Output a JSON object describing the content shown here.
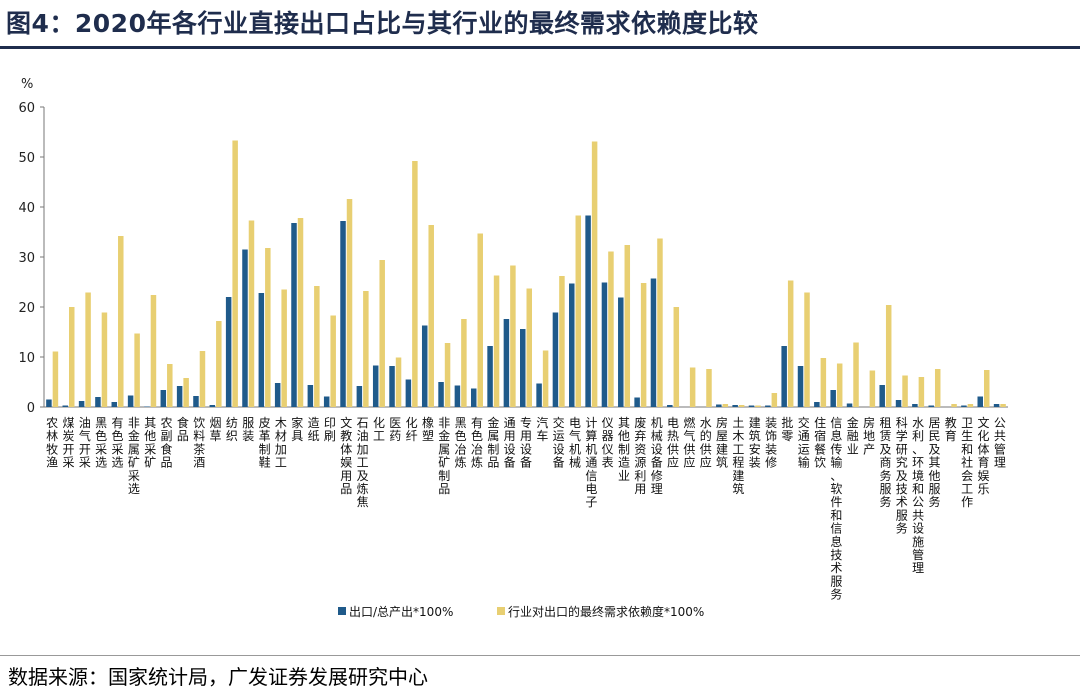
{
  "title": "图4：2020年各行业直接出口占比与其行业的最终需求依赖度比较",
  "source": "数据来源：国家统计局，广发证券发展研究中心",
  "chart_data": {
    "type": "bar",
    "ylabel": "%",
    "ylim": [
      0,
      60
    ],
    "yticks": [
      0,
      10,
      20,
      30,
      40,
      50,
      60
    ],
    "legend_position": "bottom",
    "grid": false,
    "colors": {
      "series1": "#1f5a8a",
      "series2": "#e8cf72"
    },
    "categories": [
      "农林牧渔",
      "煤炭开采",
      "油气开采",
      "黑色采选",
      "有色采选",
      "非金属矿采选",
      "其他采矿",
      "农副食品",
      "食品",
      "饮料茶酒",
      "烟草",
      "纺织",
      "服装",
      "皮革制鞋",
      "木材加工",
      "家具",
      "造纸",
      "印刷",
      "文教体娱用品",
      "石油加工及炼焦",
      "化工",
      "医药",
      "化纤",
      "橡塑",
      "非金属矿制品",
      "黑色冶炼",
      "有色冶炼",
      "金属制品",
      "通用设备",
      "专用设备",
      "汽车",
      "交运设备",
      "电气机械",
      "计算机通信电子",
      "仪器仪表",
      "其他制造业",
      "废弃资源利用",
      "机械设备修理",
      "电热供应",
      "燃气供应",
      "水的供应",
      "房屋建筑",
      "土木工程建筑",
      "建筑安装",
      "装饰装修",
      "批零",
      "交通运输",
      "住宿餐饮",
      "信息传输、软件和信息技术服务",
      "金融业",
      "房地产",
      "租赁及商务服务",
      "科学研究及技术服务",
      "水利、环境和公共设施管理",
      "居民及其他服务",
      "教育",
      "卫生和社会工作",
      "文化体育娱乐",
      "公共管理"
    ],
    "series": [
      {
        "name": "出口/总产出*100%",
        "values": [
          1.5,
          0.3,
          1.2,
          2.0,
          1.0,
          2.3,
          0.1,
          3.4,
          4.2,
          2.2,
          0.4,
          22.0,
          31.5,
          22.8,
          4.8,
          36.8,
          4.4,
          2.1,
          37.2,
          4.2,
          8.3,
          8.2,
          5.5,
          16.3,
          5.0,
          4.3,
          3.7,
          12.2,
          17.6,
          15.6,
          4.7,
          18.9,
          24.7,
          38.3,
          24.9,
          21.9,
          1.9,
          25.7,
          0.4,
          0.0,
          0.0,
          0.5,
          0.4,
          0.3,
          0.3,
          12.2,
          8.2,
          1.0,
          3.4,
          0.7,
          0.0,
          4.4,
          1.4,
          0.6,
          0.3,
          0.0,
          0.3,
          2.1,
          0.6
        ]
      },
      {
        "name": "行业对出口的最终需求依赖度*100%",
        "values": [
          11.1,
          20.0,
          22.9,
          18.9,
          34.2,
          14.7,
          22.4,
          8.6,
          5.8,
          11.2,
          17.2,
          53.3,
          37.3,
          31.8,
          23.5,
          37.8,
          24.2,
          18.3,
          41.6,
          23.2,
          29.4,
          9.9,
          49.2,
          36.4,
          12.8,
          17.6,
          34.7,
          26.3,
          28.3,
          23.7,
          11.3,
          26.2,
          38.3,
          53.1,
          31.1,
          32.4,
          24.8,
          33.7,
          20.0,
          7.9,
          7.6,
          0.6,
          0.4,
          0.3,
          2.8,
          25.3,
          22.9,
          9.8,
          8.7,
          12.9,
          7.3,
          20.4,
          6.3,
          6.0,
          7.6,
          0.6,
          0.6,
          7.4,
          0.6
        ]
      }
    ]
  }
}
